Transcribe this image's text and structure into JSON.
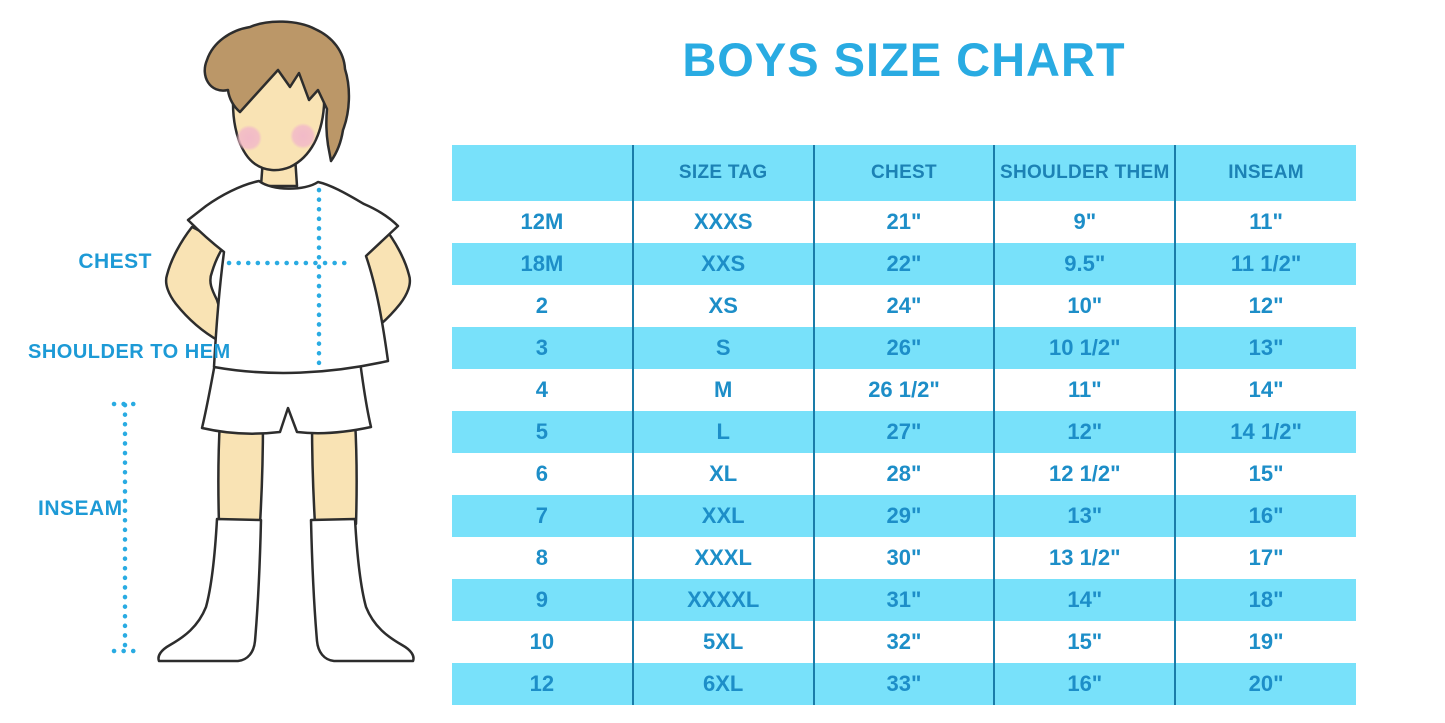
{
  "title": "BOYS SIZE CHART",
  "colors": {
    "title": "#29ABE2",
    "label": "#1D9AD6",
    "accent_dotted": "#29ABE2",
    "table_stripe": "#78E1FA",
    "table_divider": "#1A7CA9",
    "header_text": "#1C82B5",
    "cell_text": "#1D8EC8",
    "skin": "#F9E3B4",
    "hair": "#BB9768",
    "blush": "#F2BAC8",
    "outline": "#2D2D2D"
  },
  "figure": {
    "chest_label": "CHEST",
    "shoulder_to_hem_label": "SHOULDER TO HEM",
    "inseam_label": "INSEAM"
  },
  "chart_data": {
    "type": "table",
    "title": "BOYS SIZE CHART",
    "columns": [
      "",
      "SIZE TAG",
      "CHEST",
      "SHOULDER THEM",
      "INSEAM"
    ],
    "rows": [
      [
        "12M",
        "XXXS",
        "21\"",
        "9\"",
        "11\""
      ],
      [
        "18M",
        "XXS",
        "22\"",
        "9.5\"",
        "11 1/2\""
      ],
      [
        "2",
        "XS",
        "24\"",
        "10\"",
        "12\""
      ],
      [
        "3",
        "S",
        "26\"",
        "10 1/2\"",
        "13\""
      ],
      [
        "4",
        "M",
        "26 1/2\"",
        "11\"",
        "14\""
      ],
      [
        "5",
        "L",
        "27\"",
        "12\"",
        "14 1/2\""
      ],
      [
        "6",
        "XL",
        "28\"",
        "12 1/2\"",
        "15\""
      ],
      [
        "7",
        "XXL",
        "29\"",
        "13\"",
        "16\""
      ],
      [
        "8",
        "XXXL",
        "30\"",
        "13 1/2\"",
        "17\""
      ],
      [
        "9",
        "XXXXL",
        "31\"",
        "14\"",
        "18\""
      ],
      [
        "10",
        "5XL",
        "32\"",
        "15\"",
        "19\""
      ],
      [
        "12",
        "6XL",
        "33\"",
        "16\"",
        "20\""
      ]
    ],
    "layout": "header row and every second data row light cyan, others white; dark blue vertical column dividers; first header cell empty"
  }
}
